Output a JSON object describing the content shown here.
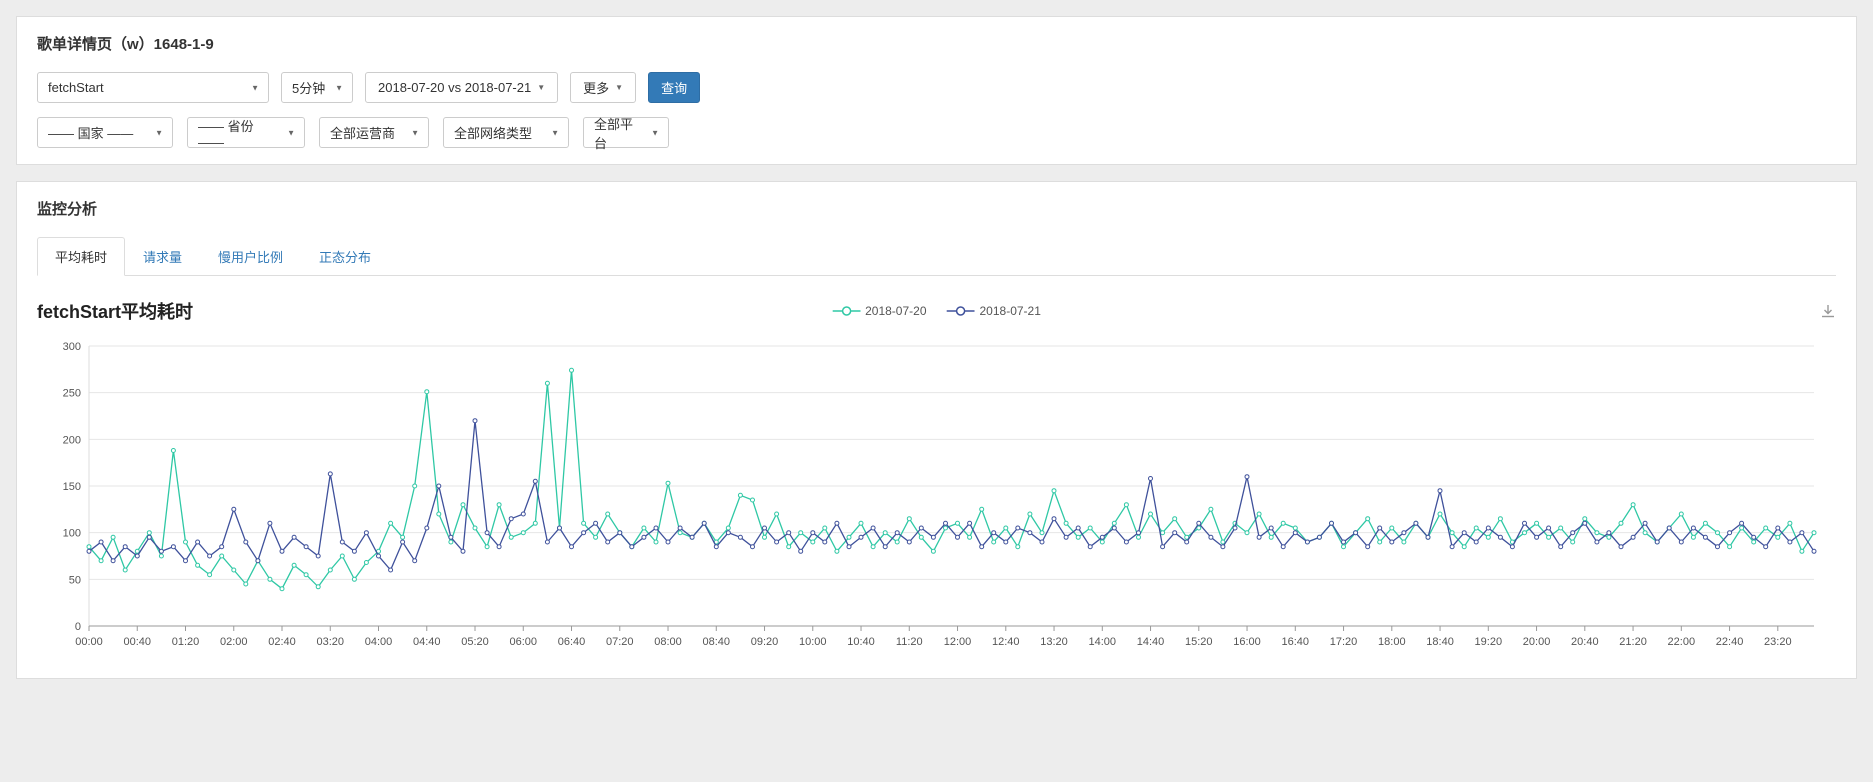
{
  "panel1": {
    "title": "歌单详情页（w）1648-1-9",
    "metric_select": "fetchStart",
    "interval_select": "5分钟",
    "daterange_label": "2018-07-20 vs 2018-07-21",
    "more_label": "更多",
    "query_label": "查询",
    "filters": [
      {
        "name": "country",
        "label": "—— 国家 ——"
      },
      {
        "name": "province",
        "label": "—— 省份 ——"
      },
      {
        "name": "carrier",
        "label": "全部运营商"
      },
      {
        "name": "network-type",
        "label": "全部网络类型"
      },
      {
        "name": "platform",
        "label": "全部平台"
      }
    ]
  },
  "panel2": {
    "title": "监控分析",
    "tabs": [
      {
        "name": "avg-time",
        "label": "平均耗时",
        "active": true
      },
      {
        "name": "request-count",
        "label": "请求量",
        "active": false
      },
      {
        "name": "slow-user-ratio",
        "label": "慢用户比例",
        "active": false
      },
      {
        "name": "normal-distribution",
        "label": "正态分布",
        "active": false
      }
    ]
  },
  "colors": {
    "accent": "#337ab7",
    "series1": "#2fc8a5",
    "series2": "#3f519b"
  },
  "chart_data": {
    "type": "line",
    "title": "fetchStart平均耗时",
    "xlabel": "",
    "ylabel": "",
    "ylim": [
      0,
      300
    ],
    "yticks": [
      0,
      50,
      100,
      150,
      200,
      250,
      300
    ],
    "x_interval_minutes": 10,
    "x_tick_every": 4,
    "x_tick_labels": [
      "00:00",
      "00:40",
      "01:20",
      "02:00",
      "02:40",
      "03:20",
      "04:00",
      "04:40",
      "05:20",
      "06:00",
      "06:40",
      "07:20",
      "08:00",
      "08:40",
      "09:20",
      "10:00",
      "10:40",
      "11:20",
      "12:00",
      "12:40",
      "13:20",
      "14:00",
      "14:40",
      "15:20",
      "16:00",
      "16:40",
      "17:20",
      "18:00",
      "18:40",
      "19:20",
      "20:00",
      "20:40",
      "21:20",
      "22:00",
      "22:40",
      "23:20"
    ],
    "grid": true,
    "legend_position": "top-center",
    "series": [
      {
        "name": "2018-07-20",
        "color": "#2fc8a5",
        "values": [
          85,
          70,
          95,
          60,
          80,
          100,
          75,
          188,
          90,
          65,
          55,
          75,
          60,
          45,
          70,
          50,
          40,
          65,
          55,
          42,
          60,
          75,
          50,
          68,
          80,
          110,
          95,
          150,
          251,
          120,
          90,
          130,
          105,
          85,
          130,
          95,
          100,
          110,
          260,
          105,
          274,
          110,
          95,
          120,
          100,
          85,
          105,
          90,
          153,
          100,
          95,
          110,
          90,
          105,
          140,
          135,
          95,
          120,
          85,
          100,
          90,
          105,
          80,
          95,
          110,
          85,
          100,
          90,
          115,
          95,
          80,
          105,
          110,
          95,
          125,
          90,
          105,
          85,
          120,
          100,
          145,
          110,
          95,
          105,
          90,
          110,
          130,
          95,
          120,
          100,
          115,
          95,
          105,
          125,
          90,
          110,
          100,
          120,
          95,
          110,
          105,
          90,
          95,
          110,
          85,
          100,
          115,
          90,
          105,
          90,
          110,
          95,
          120,
          100,
          85,
          105,
          95,
          115,
          90,
          100,
          110,
          95,
          105,
          90,
          115,
          100,
          95,
          110,
          130,
          100,
          90,
          105,
          120,
          95,
          110,
          100,
          85,
          105,
          90,
          105,
          95,
          110,
          80,
          100
        ]
      },
      {
        "name": "2018-07-21",
        "color": "#3f519b",
        "values": [
          80,
          90,
          70,
          85,
          75,
          95,
          80,
          85,
          70,
          90,
          75,
          85,
          125,
          90,
          70,
          110,
          80,
          95,
          85,
          75,
          163,
          90,
          80,
          100,
          75,
          60,
          90,
          70,
          105,
          150,
          95,
          80,
          220,
          100,
          85,
          115,
          120,
          155,
          90,
          105,
          85,
          100,
          110,
          90,
          100,
          85,
          95,
          105,
          90,
          105,
          95,
          110,
          85,
          100,
          95,
          85,
          105,
          90,
          100,
          80,
          100,
          90,
          110,
          85,
          95,
          105,
          85,
          100,
          90,
          105,
          95,
          110,
          95,
          110,
          85,
          100,
          90,
          105,
          100,
          90,
          115,
          95,
          105,
          85,
          95,
          105,
          90,
          100,
          158,
          85,
          100,
          90,
          110,
          95,
          85,
          105,
          160,
          95,
          105,
          85,
          100,
          90,
          95,
          110,
          90,
          100,
          85,
          105,
          90,
          100,
          110,
          95,
          145,
          85,
          100,
          90,
          105,
          95,
          85,
          110,
          95,
          105,
          85,
          100,
          110,
          90,
          100,
          85,
          95,
          110,
          90,
          105,
          90,
          105,
          95,
          85,
          100,
          110,
          95,
          85,
          105,
          90,
          100,
          80
        ]
      }
    ]
  }
}
